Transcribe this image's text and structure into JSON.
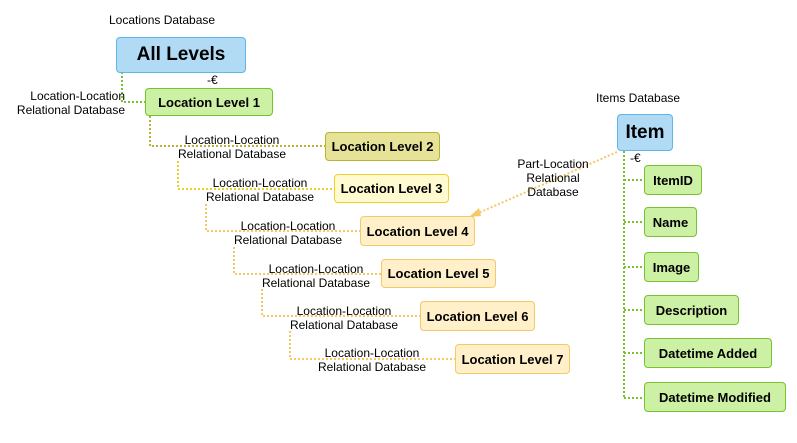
{
  "locations": {
    "title": "Locations Database",
    "root": "All Levels",
    "relation_line1": "Location-Location",
    "relation_line2": "Relational Database",
    "levels": [
      "Location Level 1",
      "Location Level 2",
      "Location Level 3",
      "Location Level 4",
      "Location Level 5",
      "Location Level 6",
      "Location Level 7"
    ]
  },
  "items": {
    "title": "Items Database",
    "root": "Item",
    "fields": [
      "ItemID",
      "Name",
      "Image",
      "Description",
      "Datetime Added",
      "Datetime Modified"
    ]
  },
  "part_link": {
    "line1": "Part-Location",
    "line2": "Relational",
    "line3": "Database"
  },
  "collapse_glyph": "-€",
  "colors": {
    "blue_fill": "#b1dbf5",
    "green_fill": "#ccf0a4",
    "olive_fill": "#e6e398",
    "yellow_fill": "#fffad0",
    "cream_fill": "#fff0c9",
    "green_line": "#79c22f",
    "yellow_line": "#f0d028",
    "cream_line": "#f5c868"
  }
}
